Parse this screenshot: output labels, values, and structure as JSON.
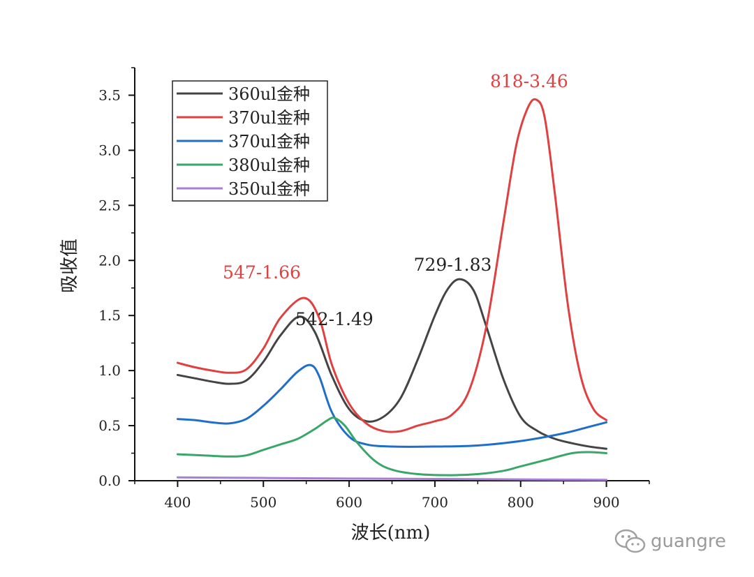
{
  "chart_data": {
    "type": "line",
    "xlabel": "波长(nm)",
    "ylabel": "吸收值",
    "xlim": [
      350,
      950
    ],
    "ylim": [
      0,
      3.75
    ],
    "xticks": [
      400,
      500,
      600,
      700,
      800,
      900
    ],
    "yticks": [
      "0.0",
      "0.5",
      "1.0",
      "1.5",
      "2.0",
      "2.5",
      "3.0",
      "3.5"
    ],
    "legend_position": "top-left",
    "series": [
      {
        "name": "360ul金种",
        "color": "#444444",
        "x": [
          400,
          420,
          440,
          460,
          480,
          500,
          520,
          542,
          560,
          580,
          600,
          620,
          640,
          660,
          680,
          700,
          715,
          729,
          745,
          760,
          780,
          800,
          820,
          840,
          860,
          880,
          900
        ],
        "y": [
          0.96,
          0.93,
          0.9,
          0.88,
          0.91,
          1.08,
          1.32,
          1.49,
          1.35,
          0.95,
          0.65,
          0.54,
          0.58,
          0.75,
          1.1,
          1.5,
          1.74,
          1.83,
          1.73,
          1.4,
          0.92,
          0.58,
          0.45,
          0.38,
          0.34,
          0.31,
          0.29
        ]
      },
      {
        "name": "370ul金种",
        "color": "#e04040",
        "x": [
          400,
          420,
          440,
          460,
          480,
          500,
          520,
          547,
          565,
          580,
          600,
          620,
          640,
          660,
          680,
          700,
          720,
          740,
          760,
          780,
          795,
          808,
          818,
          828,
          840,
          855,
          870,
          885,
          900
        ],
        "y": [
          1.07,
          1.03,
          1.0,
          0.98,
          1.01,
          1.2,
          1.48,
          1.66,
          1.48,
          1.05,
          0.7,
          0.52,
          0.45,
          0.45,
          0.5,
          0.54,
          0.6,
          0.82,
          1.4,
          2.35,
          3.05,
          3.38,
          3.46,
          3.3,
          2.6,
          1.6,
          0.95,
          0.65,
          0.55
        ]
      },
      {
        "name": "370ul金种",
        "color": "#1f6fc9",
        "x": [
          400,
          420,
          440,
          460,
          480,
          500,
          520,
          540,
          555,
          565,
          580,
          600,
          620,
          650,
          700,
          750,
          800,
          850,
          880,
          900
        ],
        "y": [
          0.56,
          0.55,
          0.53,
          0.52,
          0.56,
          0.68,
          0.83,
          0.99,
          1.05,
          0.95,
          0.62,
          0.4,
          0.33,
          0.31,
          0.31,
          0.32,
          0.36,
          0.43,
          0.49,
          0.53
        ]
      },
      {
        "name": "380ul金种",
        "color": "#3aa66a",
        "x": [
          400,
          430,
          460,
          480,
          500,
          520,
          540,
          560,
          575,
          583,
          595,
          610,
          630,
          650,
          680,
          720,
          750,
          780,
          800,
          830,
          860,
          880,
          900
        ],
        "y": [
          0.24,
          0.23,
          0.22,
          0.23,
          0.28,
          0.33,
          0.38,
          0.47,
          0.55,
          0.57,
          0.5,
          0.34,
          0.18,
          0.1,
          0.06,
          0.05,
          0.06,
          0.09,
          0.13,
          0.19,
          0.25,
          0.26,
          0.25
        ]
      },
      {
        "name": "350ul金种",
        "color": "#a97fd6",
        "x": [
          400,
          500,
          600,
          700,
          800,
          900
        ],
        "y": [
          0.03,
          0.025,
          0.02,
          0.016,
          0.012,
          0.008
        ]
      }
    ],
    "annotations": [
      {
        "text": "547-1.66",
        "color": "#e04040",
        "x": 547,
        "y": 1.66
      },
      {
        "text": "542-1.49",
        "color": "#222222",
        "x": 542,
        "y": 1.49
      },
      {
        "text": "729-1.83",
        "color": "#222222",
        "x": 729,
        "y": 1.83
      },
      {
        "text": "818-3.46",
        "color": "#e04040",
        "x": 818,
        "y": 3.46
      }
    ]
  },
  "watermark": {
    "text": "guangre",
    "icon": "wechat-icon"
  }
}
